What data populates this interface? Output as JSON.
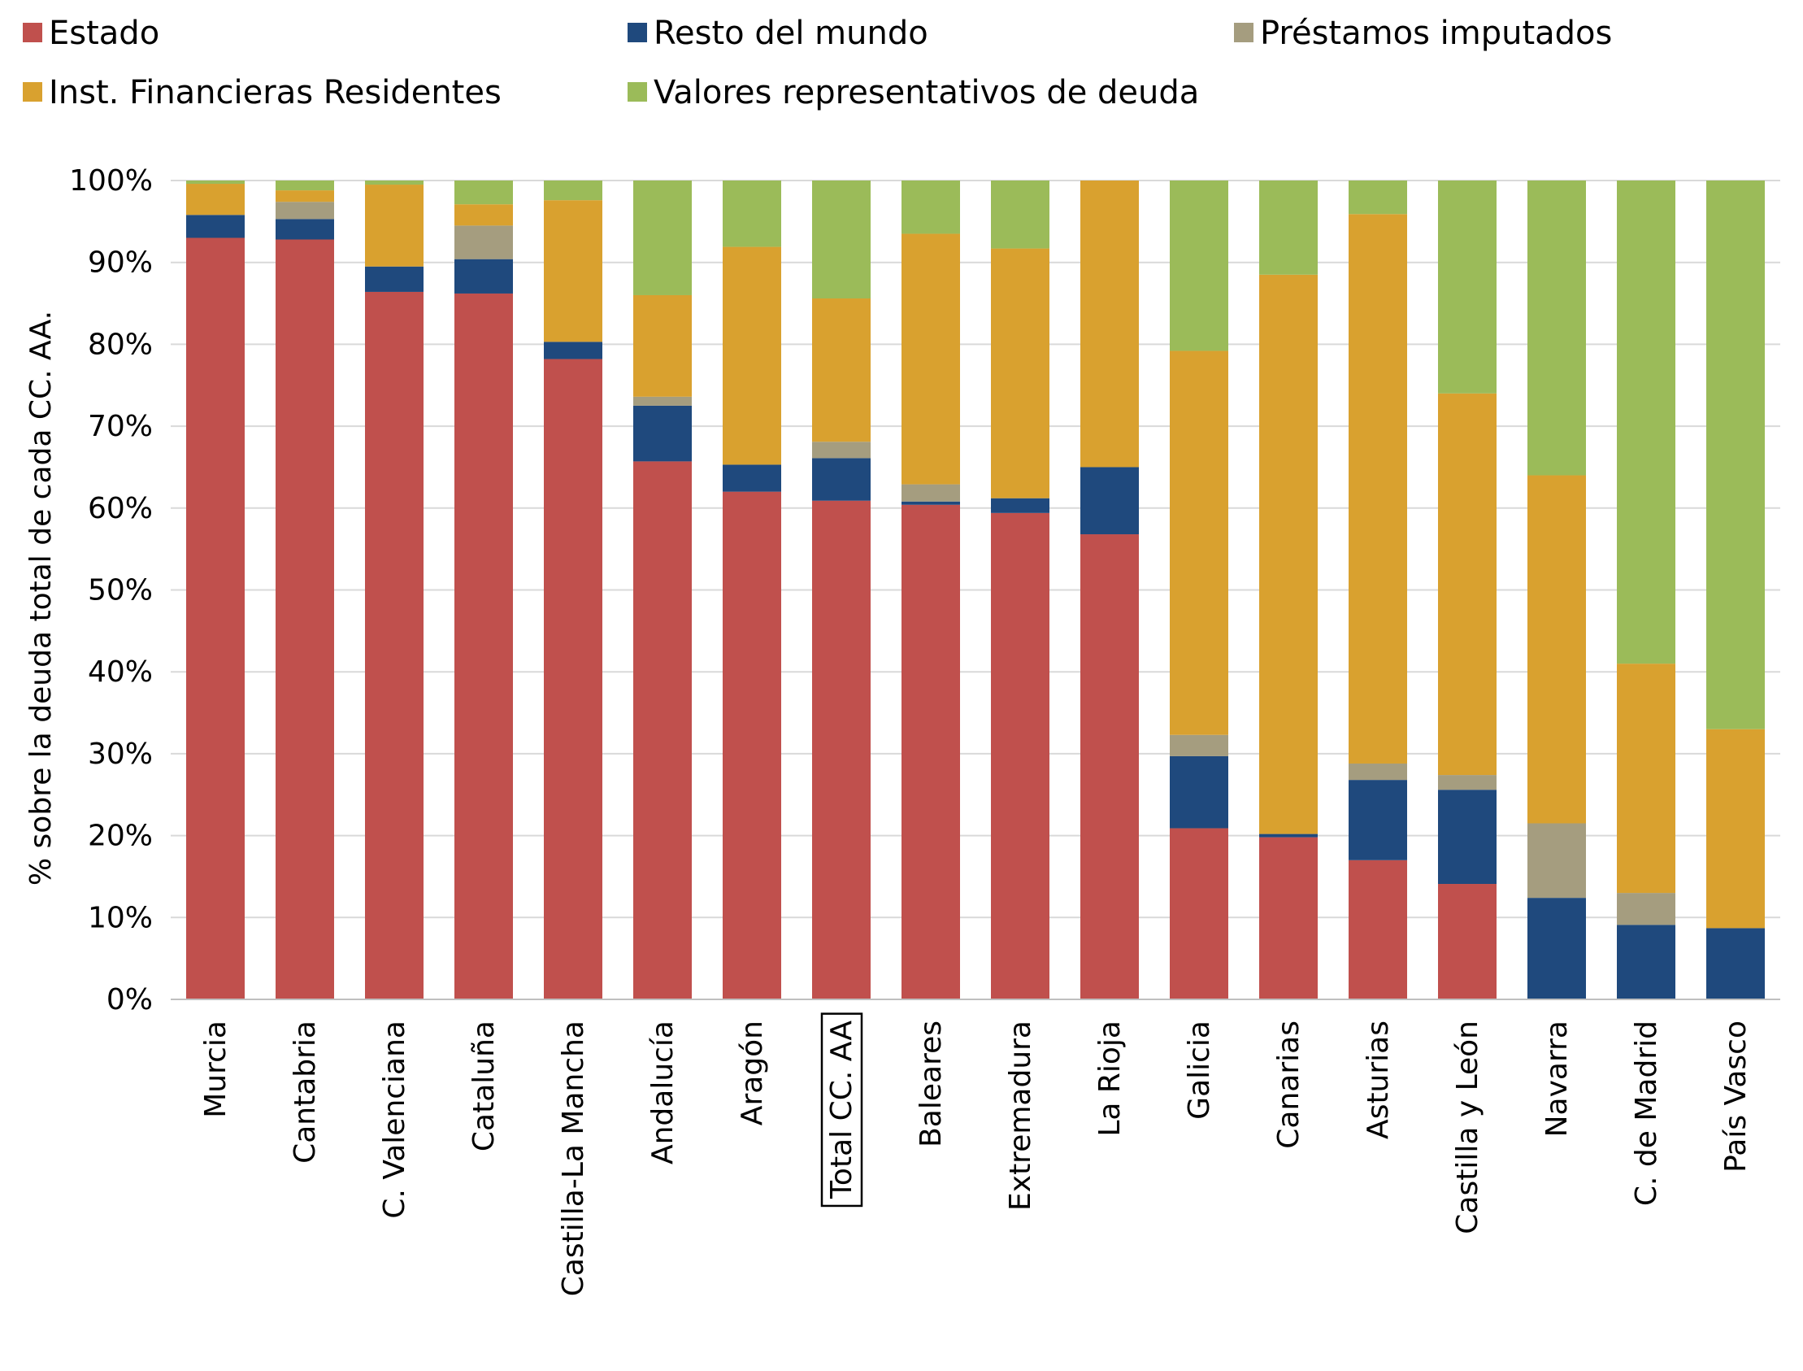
{
  "chart_data": {
    "type": "bar",
    "stacked": true,
    "title": "",
    "xlabel": "",
    "ylabel": "% sobre la deuda total de cada CC. AA.",
    "ylim": [
      0,
      100
    ],
    "yticks": [
      "0%",
      "10%",
      "20%",
      "30%",
      "40%",
      "50%",
      "60%",
      "70%",
      "80%",
      "90%",
      "100%"
    ],
    "grid": true,
    "legend_position": "top",
    "highlighted_category": "Total CC. AA",
    "categories": [
      "Murcia",
      "Cantabria",
      "C. Valenciana",
      "Cataluña",
      "Castilla-La Mancha",
      "Andalucía",
      "Aragón",
      "Total CC. AA",
      "Baleares",
      "Extremadura",
      "La Rioja",
      "Galicia",
      "Canarias",
      "Asturias",
      "Castilla y León",
      "Navarra",
      "C. de Madrid",
      "País Vasco"
    ],
    "series": [
      {
        "name": "Estado",
        "color": "#C0504D",
        "values": [
          93.0,
          92.8,
          86.4,
          86.2,
          78.2,
          65.7,
          62.0,
          60.9,
          60.4,
          59.4,
          56.8,
          20.9,
          19.8,
          17.0,
          14.1,
          0.0,
          0.0,
          0.0
        ]
      },
      {
        "name": "Resto del mundo",
        "color": "#1F497D",
        "values": [
          2.8,
          2.5,
          3.1,
          4.2,
          2.1,
          6.8,
          3.3,
          5.2,
          0.4,
          1.8,
          8.2,
          8.8,
          0.4,
          9.8,
          11.5,
          12.4,
          9.1,
          8.7
        ]
      },
      {
        "name": "Préstamos imputados",
        "color": "#A59D7F",
        "values": [
          0.0,
          2.1,
          0.0,
          4.1,
          0.0,
          1.1,
          0.0,
          2.0,
          2.1,
          0.0,
          0.0,
          2.6,
          0.0,
          2.0,
          1.8,
          9.1,
          3.9,
          0.0
        ]
      },
      {
        "name": "Inst. Financieras Residentes",
        "color": "#D9A12F",
        "values": [
          3.8,
          1.4,
          10.0,
          2.6,
          17.3,
          12.4,
          26.6,
          17.5,
          30.6,
          30.5,
          35.0,
          46.9,
          68.3,
          67.1,
          46.6,
          42.5,
          28.0,
          24.3
        ]
      },
      {
        "name": "Valores representativos de deuda",
        "color": "#9BBB59",
        "values": [
          0.4,
          1.2,
          0.5,
          2.9,
          2.4,
          14.0,
          8.1,
          14.4,
          6.5,
          8.3,
          0.0,
          20.8,
          11.5,
          4.1,
          26.0,
          36.0,
          59.0,
          67.0
        ]
      }
    ]
  }
}
